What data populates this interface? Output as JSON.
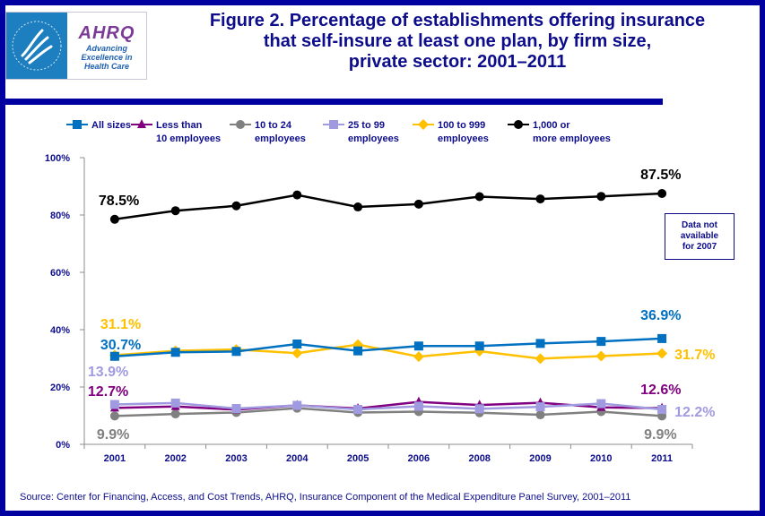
{
  "logo": {
    "agency": "AHRQ",
    "tagline": [
      "Advancing",
      "Excellence in",
      "Health Care"
    ],
    "icon": "hhs-eagle-icon"
  },
  "header": {
    "title_lines": [
      "Figure 2. Percentage of establishments  offering insurance",
      "that self-insure at least one plan, by firm size,",
      "private sector: 2001–2011"
    ]
  },
  "note": {
    "lines": [
      "Data not",
      "available",
      "for 2007"
    ]
  },
  "source": "Source: Center for Financing, Access, and Cost Trends, AHRQ, Insurance Component of the Medical Expenditure Panel Survey, 2001–2011",
  "colors": {
    "frame": "#0000a0",
    "text": "#0d0d8c",
    "axis": "#8c8c8c"
  },
  "chart_data": {
    "type": "line",
    "title": "Figure 2. Percentage of establishments offering insurance that self-insure at least one plan, by firm size, private sector: 2001–2011",
    "xlabel": "",
    "ylabel": "",
    "ylim": [
      0,
      100
    ],
    "yticks": [
      0,
      20,
      40,
      60,
      80,
      100
    ],
    "ytick_labels": [
      "0%",
      "20%",
      "40%",
      "60%",
      "80%",
      "100%"
    ],
    "categories": [
      "2001",
      "2002",
      "2003",
      "2004",
      "2005",
      "2006",
      "2008",
      "2009",
      "2010",
      "2011"
    ],
    "grid": false,
    "legend_position": "top",
    "series": [
      {
        "name": "All sizes",
        "legend": [
          "All sizes"
        ],
        "color": "#0070c0",
        "marker": "square",
        "values": [
          30.7,
          32.1,
          32.4,
          35.0,
          32.6,
          34.3,
          34.3,
          35.2,
          35.9,
          36.9
        ],
        "labels": {
          "first": "30.7%",
          "last": "36.9%"
        }
      },
      {
        "name": "Less than 10 employees",
        "legend": [
          "Less than",
          "10 employees"
        ],
        "color": "#800080",
        "marker": "triangle",
        "values": [
          12.7,
          13.2,
          12.1,
          13.6,
          12.5,
          14.8,
          13.7,
          14.5,
          12.9,
          12.6
        ],
        "labels": {
          "first": "12.7%",
          "last": "12.6%"
        }
      },
      {
        "name": "10 to 24 employees",
        "legend": [
          "10 to 24",
          "employees"
        ],
        "color": "#808080",
        "marker": "circle",
        "values": [
          9.9,
          10.6,
          11.1,
          12.6,
          11.1,
          11.4,
          11.0,
          10.3,
          11.4,
          9.9
        ],
        "labels": {
          "first": "9.9%",
          "last": "9.9%"
        }
      },
      {
        "name": "25 to 99 employees",
        "legend": [
          "25 to 99",
          "employees"
        ],
        "color": "#a09be0",
        "marker": "square",
        "values": [
          13.9,
          14.4,
          12.5,
          13.6,
          12.2,
          13.3,
          12.4,
          13.1,
          14.2,
          12.2
        ],
        "labels": {
          "first": "13.9%",
          "last": "12.2%"
        }
      },
      {
        "name": "100 to 999 employees",
        "legend": [
          "100 to 999",
          "employees"
        ],
        "color": "#ffc000",
        "marker": "diamond",
        "values": [
          31.1,
          32.6,
          33.1,
          31.8,
          34.8,
          30.6,
          32.5,
          29.9,
          30.8,
          31.7
        ],
        "labels": {
          "first": "31.1%",
          "last": "31.7%"
        }
      },
      {
        "name": "1,000 or more employees",
        "legend": [
          "1,000 or",
          "more employees"
        ],
        "color": "#000000",
        "marker": "circle",
        "values": [
          78.5,
          81.5,
          83.2,
          87.0,
          82.8,
          83.8,
          86.4,
          85.6,
          86.5,
          87.5
        ],
        "labels": {
          "first": "78.5%",
          "last": "87.5%"
        }
      }
    ]
  }
}
